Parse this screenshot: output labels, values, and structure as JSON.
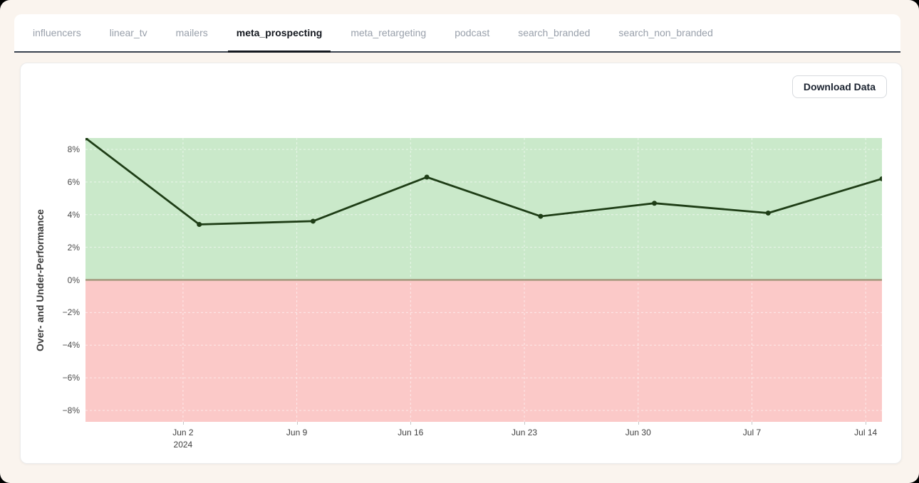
{
  "tabs": {
    "items": [
      {
        "label": "influencers",
        "active": false
      },
      {
        "label": "linear_tv",
        "active": false
      },
      {
        "label": "mailers",
        "active": false
      },
      {
        "label": "meta_prospecting",
        "active": true
      },
      {
        "label": "meta_retargeting",
        "active": false
      },
      {
        "label": "podcast",
        "active": false
      },
      {
        "label": "search_branded",
        "active": false
      },
      {
        "label": "search_non_branded",
        "active": false
      }
    ]
  },
  "toolbar": {
    "download_label": "Download Data"
  },
  "chart_data": {
    "type": "line",
    "series": [
      {
        "name": "meta_prospecting",
        "x_dates": [
          "May 27",
          "Jun 3",
          "Jun 10",
          "Jun 17",
          "Jun 24",
          "Jul 1",
          "Jul 8",
          "Jul 15"
        ],
        "values": [
          8.7,
          3.4,
          3.6,
          6.3,
          3.9,
          4.7,
          4.1,
          6.2
        ]
      }
    ],
    "point_day_offsets": [
      0,
      7,
      14,
      21,
      28,
      35,
      42,
      49
    ],
    "x_span_days": 49,
    "ylabel": "Over- and Under-Performance",
    "xlabel": "",
    "ylim": [
      -8.7,
      8.7
    ],
    "y_ticks": {
      "values": [
        8,
        6,
        4,
        2,
        0,
        -2,
        -4,
        -6,
        -8
      ],
      "labels": [
        "8%",
        "6%",
        "4%",
        "2%",
        "0%",
        "−2%",
        "−4%",
        "−6%",
        "−8%"
      ]
    },
    "x_ticks": {
      "day_offsets": [
        6,
        13,
        20,
        27,
        34,
        41,
        48
      ],
      "labels": [
        [
          "Jun 2",
          "2024"
        ],
        [
          "Jun 9"
        ],
        [
          "Jun 16"
        ],
        [
          "Jun 23"
        ],
        [
          "Jun 30"
        ],
        [
          "Jul 7"
        ],
        [
          "Jul 14"
        ]
      ]
    },
    "grid": true,
    "legend": "none",
    "colors": {
      "positive_band": "#cae9ca",
      "negative_band": "#fbc9c8",
      "line": "#1e3d16",
      "marker": "#1e3d16",
      "zero_line": "#a3987c",
      "gridline": "rgba(255,255,255,0.6)"
    }
  }
}
